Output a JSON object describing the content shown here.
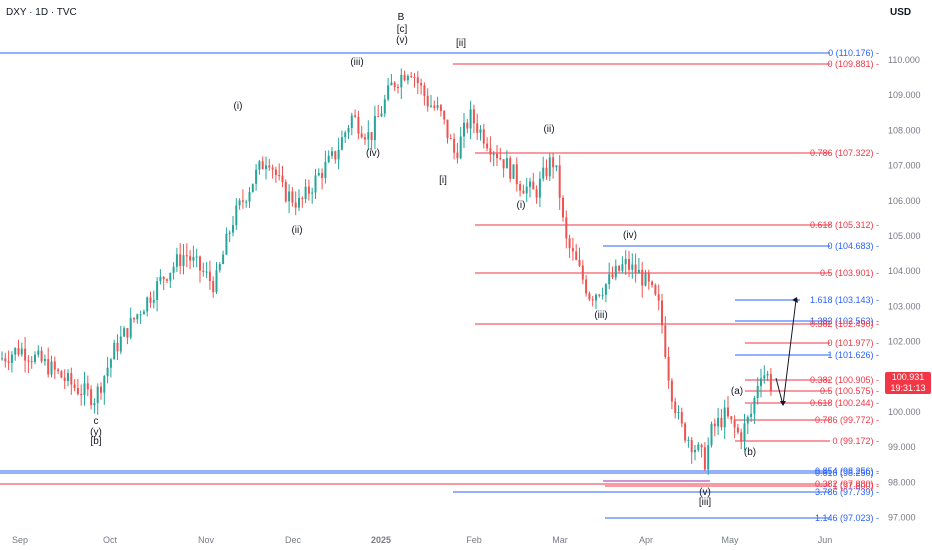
{
  "header": {
    "symbol": "DXY · 1D · TVC",
    "currency": "USD"
  },
  "price_badge": {
    "price": "100.931",
    "countdown": "19:31:13"
  },
  "colors": {
    "up": "#26a69a",
    "down": "#ef5350",
    "blue": "#2962ff",
    "red": "#f23645",
    "purple": "#9c27b0"
  },
  "chart_data": {
    "type": "candlestick",
    "y_range": [
      96.7,
      111.3
    ],
    "y_ticks": [
      "110.000",
      "109.000",
      "108.000",
      "107.000",
      "106.000",
      "105.000",
      "104.000",
      "103.000",
      "102.000",
      "101.000",
      "100.000",
      "99.000",
      "98.000",
      "97.000"
    ],
    "x_ticks": [
      "Sep",
      "Oct",
      "Nov",
      "Dec",
      "2025",
      "Feb",
      "Mar",
      "Apr",
      "May",
      "Jun"
    ],
    "fib_levels": [
      {
        "label": "0 (110.176)",
        "color": "blue"
      },
      {
        "label": "0 (109.881)",
        "color": "red"
      },
      {
        "label": "0.786 (107.322)",
        "color": "red"
      },
      {
        "label": "0.618 (105.312)",
        "color": "red"
      },
      {
        "label": "0 (104.683)",
        "color": "blue"
      },
      {
        "label": "0.5 (103.901)",
        "color": "red"
      },
      {
        "label": "1.618 (103.143)",
        "color": "blue"
      },
      {
        "label": "1.382 (102.563)",
        "color": "blue"
      },
      {
        "label": "0.382 (102.490)",
        "color": "red"
      },
      {
        "label": "0 (101.977)",
        "color": "red"
      },
      {
        "label": "1 (101.626)",
        "color": "blue"
      },
      {
        "label": "0.382 (100.905)",
        "color": "red"
      },
      {
        "label": "0.5 (100.575)",
        "color": "red"
      },
      {
        "label": "0.618 (100.244)",
        "color": "red"
      },
      {
        "label": "0.786 (99.772)",
        "color": "red"
      },
      {
        "label": "0 (99.172)",
        "color": "red"
      },
      {
        "label": "0.854 (98.256)",
        "color": "blue"
      },
      {
        "label": "0.618 (98.250)",
        "color": "blue"
      },
      {
        "label": "0.382 (97.880)",
        "color": "red"
      },
      {
        "label": "1 (97.800)",
        "color": "red"
      },
      {
        "label": "3.786 (97.739)",
        "color": "blue"
      },
      {
        "label": "1.146 (97.023)",
        "color": "blue"
      }
    ],
    "wave_labels": [
      "B",
      "[c]",
      "(v)",
      "[ii]",
      "(iii)",
      "(i)",
      "(iv)",
      "(ii)",
      "[i]",
      "(ii)",
      "(i)",
      "(iv)",
      "(iii)",
      "c",
      "(y)",
      "[b]",
      "(a)",
      "(b)",
      "(v)",
      "[iii]"
    ]
  }
}
